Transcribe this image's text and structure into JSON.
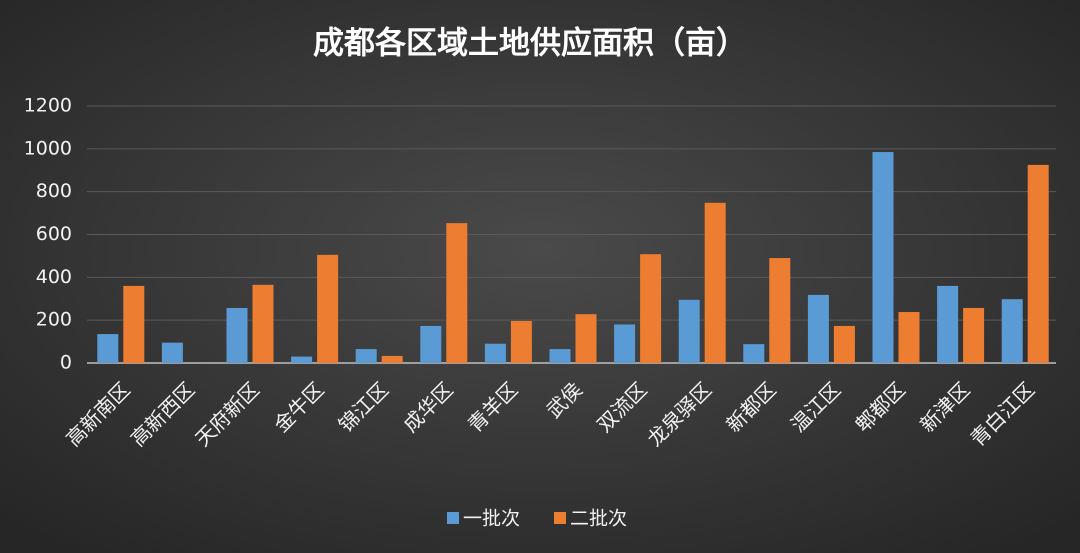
{
  "chart_data": {
    "type": "bar",
    "title": "成都各区域土地供应面积（亩）",
    "categories": [
      "高新南区",
      "高新西区",
      "天府新区",
      "金牛区",
      "锦江区",
      "成华区",
      "青羊区",
      "武侯",
      "双流区",
      "龙泉驿区",
      "新都区",
      "温江区",
      "郫都区",
      "新津区",
      "青白江区"
    ],
    "series": [
      {
        "name": "一批次",
        "color": "#5b9bd5",
        "values": [
          135,
          95,
          257,
          30,
          65,
          173,
          90,
          65,
          180,
          295,
          88,
          318,
          985,
          360,
          298
        ]
      },
      {
        "name": "二批次",
        "color": "#ed7d31",
        "values": [
          360,
          null,
          365,
          505,
          33,
          653,
          196,
          228,
          508,
          748,
          490,
          173,
          238,
          257,
          925
        ]
      }
    ],
    "ylim": [
      0,
      1200
    ],
    "yticks": [
      0,
      200,
      400,
      600,
      800,
      1000,
      1200
    ],
    "grid": true
  }
}
